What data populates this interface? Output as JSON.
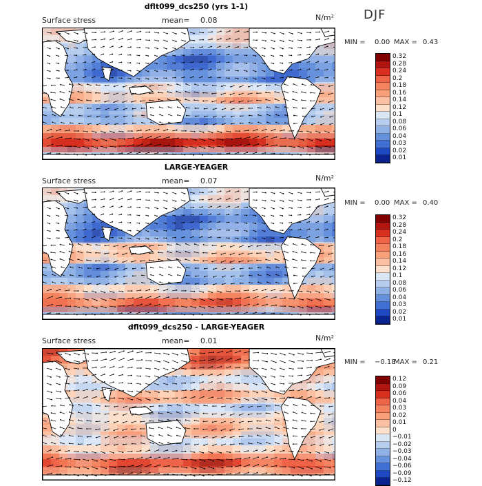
{
  "season": "DJF",
  "units": "N/m²",
  "chart_data": [
    {
      "type": "heatmap",
      "title": "dflt099_dcs250 (yrs 1-1)",
      "variable": "Surface stress",
      "mean_label": "mean=",
      "mean": "0.08",
      "min_label": "MIN =",
      "min": "0.00",
      "max_label": "MAX =",
      "max": "0.43",
      "colorbar_levels": [
        "0.32",
        "0.28",
        "0.24",
        "0.2",
        "0.18",
        "0.16",
        "0.14",
        "0.12",
        "0.1",
        "0.08",
        "0.06",
        "0.04",
        "0.03",
        "0.02",
        "0.01"
      ],
      "colorbar_colors": [
        "#7f0000",
        "#b0150f",
        "#d7301f",
        "#ef6548",
        "#f4845f",
        "#f7a07a",
        "#fbc0a3",
        "#fde0cc",
        "#dbe6f5",
        "#b7cdee",
        "#8fb1e6",
        "#6691dd",
        "#4170d4",
        "#1f49c2",
        "#0b2390"
      ],
      "zones": [
        0.45,
        0.3,
        0.2,
        0.25,
        0.45,
        0.55,
        0.35,
        0.3,
        0.55,
        0.85,
        0.35,
        0.2
      ]
    },
    {
      "type": "heatmap",
      "title": "LARGE-YEAGER",
      "variable": "Surface stress",
      "mean_label": "mean=",
      "mean": "0.07",
      "min_label": "MIN =",
      "min": "0.00",
      "max_label": "MAX =",
      "max": "0.40",
      "colorbar_levels": [
        "0.32",
        "0.28",
        "0.24",
        "0.2",
        "0.18",
        "0.16",
        "0.14",
        "0.12",
        "0.1",
        "0.08",
        "0.06",
        "0.04",
        "0.03",
        "0.02",
        "0.01"
      ],
      "colorbar_colors": [
        "#7f0000",
        "#b0150f",
        "#d7301f",
        "#ef6548",
        "#f4845f",
        "#f7a07a",
        "#fbc0a3",
        "#fde0cc",
        "#dbe6f5",
        "#b7cdee",
        "#8fb1e6",
        "#6691dd",
        "#4170d4",
        "#1f49c2",
        "#0b2390"
      ],
      "zones": [
        0.4,
        0.3,
        0.2,
        0.25,
        0.5,
        0.55,
        0.3,
        0.3,
        0.5,
        0.75,
        0.3,
        0.2
      ]
    },
    {
      "type": "heatmap",
      "title": "dflt099_dcs250 - LARGE-YEAGER",
      "variable": "Surface stress",
      "mean_label": "mean=",
      "mean": "0.01",
      "min_label": "MIN =",
      "min": "−0.18",
      "max_label": "MAX =",
      "max": "0.21",
      "colorbar_levels": [
        "0.12",
        "0.09",
        "0.06",
        "0.04",
        "0.03",
        "0.02",
        "0.01",
        "0",
        "−0.01",
        "−0.02",
        "−0.03",
        "−0.04",
        "−0.06",
        "−0.09",
        "−0.12"
      ],
      "colorbar_colors": [
        "#7f0000",
        "#b0150f",
        "#d7301f",
        "#ef6548",
        "#f4845f",
        "#f7a07a",
        "#fbc0a3",
        "#fde0cc",
        "#dbe6f5",
        "#b7cdee",
        "#8fb1e6",
        "#6691dd",
        "#4170d4",
        "#1f49c2",
        "#0b2390"
      ],
      "zones": [
        0.75,
        0.55,
        0.45,
        0.6,
        0.4,
        0.5,
        0.55,
        0.45,
        0.5,
        0.8,
        0.6,
        0.45
      ]
    }
  ]
}
